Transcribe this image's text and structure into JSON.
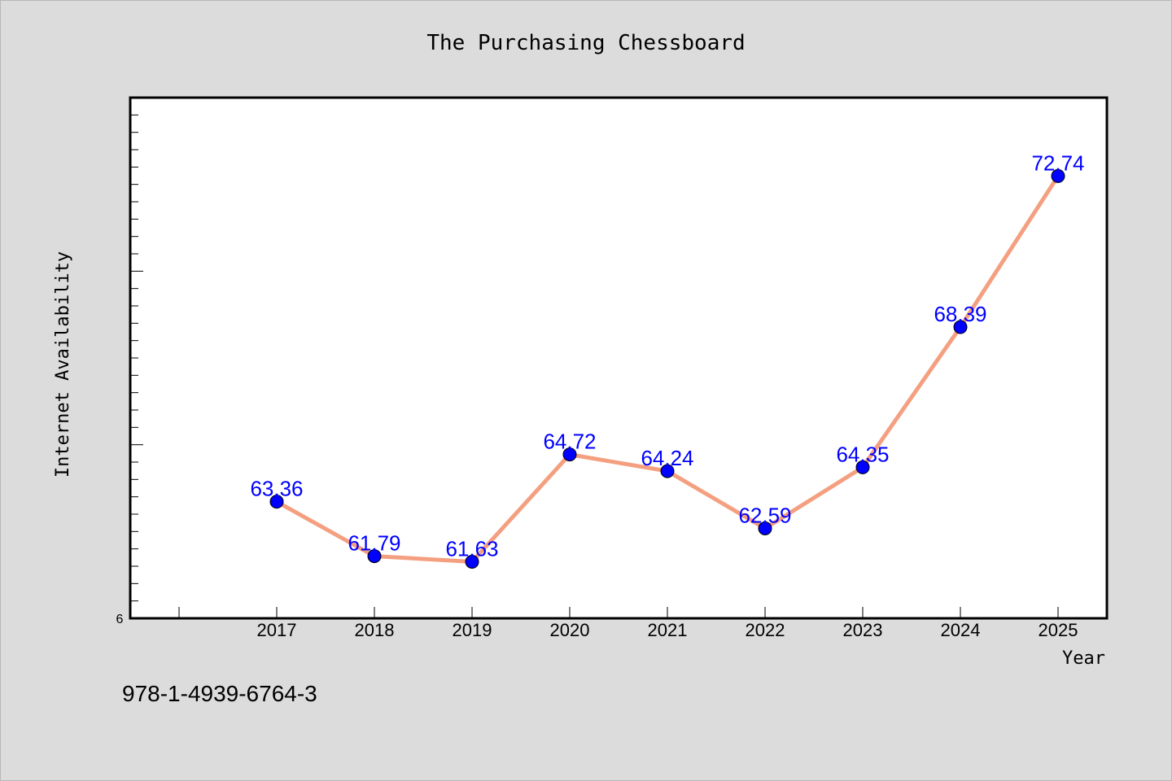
{
  "chart_data": {
    "type": "line",
    "title": "The Purchasing Chessboard",
    "xlabel": "Year",
    "ylabel": "Internet Availability",
    "categories": [
      "2017",
      "2018",
      "2019",
      "2020",
      "2021",
      "2022",
      "2023",
      "2024",
      "2025"
    ],
    "series": [
      {
        "values": [
          63.36,
          61.79,
          61.63,
          64.72,
          64.24,
          62.59,
          64.35,
          68.39,
          72.74
        ],
        "labels": [
          "63.36",
          "61.79",
          "61.63",
          "64.72",
          "64.24",
          "62.59",
          "64.35",
          "68.39",
          "72.74"
        ],
        "line_color": "#f4a080",
        "marker_color": "#0000ff"
      }
    ],
    "ylim": [
      60,
      75
    ],
    "ylim_label": "6",
    "grid": false,
    "colors": {
      "background": "#dcdcdc",
      "plot_background": "#ffffff",
      "data_label": "#0000ff"
    }
  },
  "footer": {
    "isbn": "978-1-4939-6764-3"
  }
}
